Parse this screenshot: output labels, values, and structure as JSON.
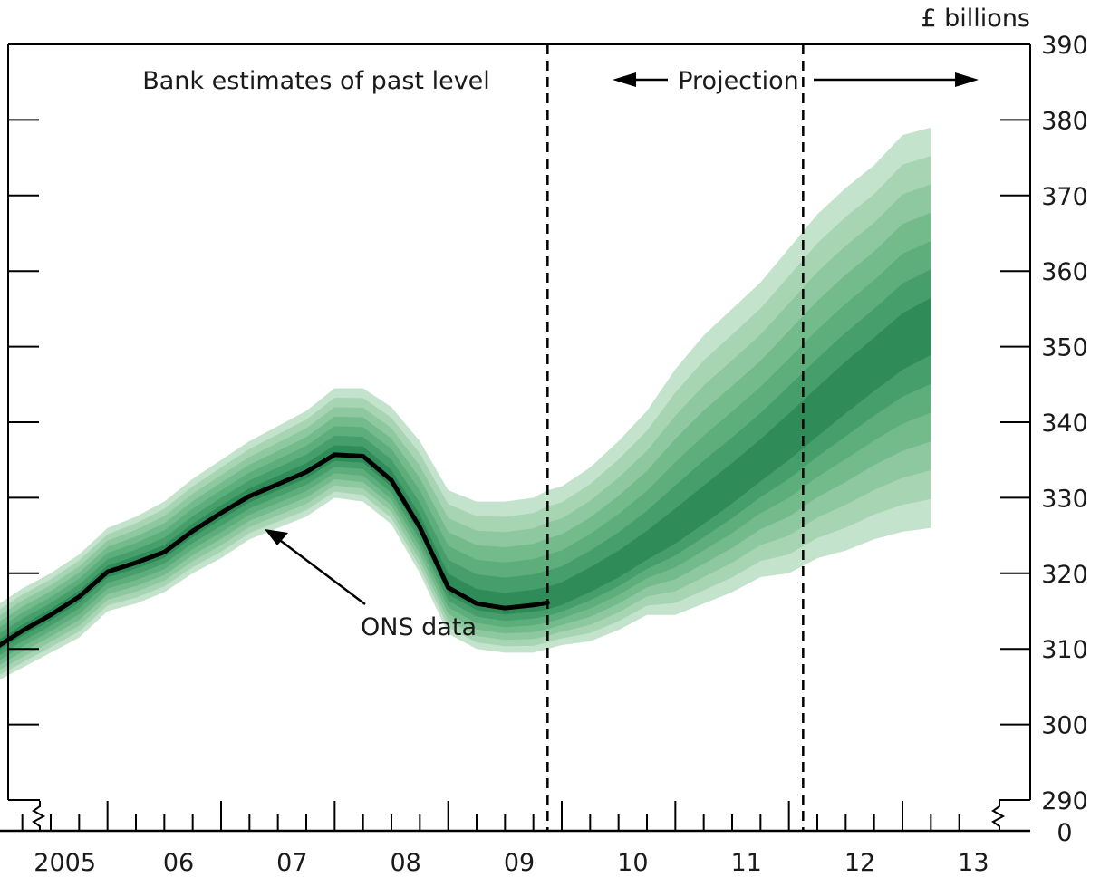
{
  "chart_data": {
    "type": "area",
    "unit_label": "£ billions",
    "x_tick_labels": [
      {
        "x": 2005.0,
        "label": "2005"
      },
      {
        "x": 2006.0,
        "label": "06"
      },
      {
        "x": 2007.0,
        "label": "07"
      },
      {
        "x": 2008.0,
        "label": "08"
      },
      {
        "x": 2009.0,
        "label": "09"
      },
      {
        "x": 2010.0,
        "label": "10"
      },
      {
        "x": 2011.0,
        "label": "11"
      },
      {
        "x": 2012.0,
        "label": "12"
      },
      {
        "x": 2013.0,
        "label": "13"
      }
    ],
    "y_tick_labels": [
      "290",
      "300",
      "310",
      "320",
      "330",
      "340",
      "350",
      "360",
      "370",
      "380",
      "390"
    ],
    "y_break_label": "0",
    "ylim": [
      290,
      390
    ],
    "xlim": [
      2004.5,
      2013.5
    ],
    "annotations": {
      "past": "Bank estimates of past level",
      "projection": "Projection",
      "ons": "ONS data"
    },
    "vlines": [
      2009.25,
      2011.5
    ],
    "band_colors": [
      "#c4e3cc",
      "#a7d5b3",
      "#8ec8a0",
      "#74bb8c",
      "#5dae7b",
      "#469f6a",
      "#2f8c58"
    ],
    "center": [
      [
        2004.375,
        310.0
      ],
      [
        2004.625,
        312.4
      ],
      [
        2004.875,
        314.5
      ],
      [
        2005.125,
        316.9
      ],
      [
        2005.375,
        320.2
      ],
      [
        2005.625,
        321.4
      ],
      [
        2005.875,
        322.8
      ],
      [
        2006.125,
        325.6
      ],
      [
        2006.375,
        328.0
      ],
      [
        2006.625,
        330.2
      ],
      [
        2006.875,
        331.8
      ],
      [
        2007.125,
        333.4
      ],
      [
        2007.375,
        335.7
      ],
      [
        2007.625,
        335.5
      ],
      [
        2007.875,
        332.3
      ],
      [
        2008.125,
        326.1
      ],
      [
        2008.375,
        318.1
      ],
      [
        2008.625,
        316.0
      ],
      [
        2008.875,
        315.4
      ],
      [
        2009.125,
        315.8
      ],
      [
        2009.25,
        316.1
      ],
      [
        2009.375,
        316.7
      ],
      [
        2009.625,
        318.6
      ],
      [
        2009.875,
        320.6
      ],
      [
        2010.125,
        323.0
      ],
      [
        2010.375,
        325.5
      ],
      [
        2010.625,
        328.3
      ],
      [
        2010.875,
        331.2
      ],
      [
        2011.125,
        334.3
      ],
      [
        2011.375,
        337.5
      ],
      [
        2011.625,
        340.8
      ],
      [
        2011.875,
        344.2
      ],
      [
        2012.125,
        347.4
      ],
      [
        2012.375,
        350.5
      ],
      [
        2012.625,
        352.7
      ]
    ],
    "outer_upper": [
      [
        2004.375,
        315.5
      ],
      [
        2004.625,
        318.0
      ],
      [
        2004.875,
        320.0
      ],
      [
        2005.125,
        322.5
      ],
      [
        2005.375,
        326.0
      ],
      [
        2005.625,
        327.5
      ],
      [
        2005.875,
        329.5
      ],
      [
        2006.125,
        332.5
      ],
      [
        2006.375,
        335.0
      ],
      [
        2006.625,
        337.5
      ],
      [
        2006.875,
        339.5
      ],
      [
        2007.125,
        341.5
      ],
      [
        2007.375,
        344.5
      ],
      [
        2007.625,
        344.5
      ],
      [
        2007.875,
        342.0
      ],
      [
        2008.125,
        337.5
      ],
      [
        2008.375,
        331.0
      ],
      [
        2008.625,
        329.5
      ],
      [
        2008.875,
        329.5
      ],
      [
        2009.125,
        330.0
      ],
      [
        2009.25,
        331.0
      ],
      [
        2009.375,
        331.5
      ],
      [
        2009.625,
        334.0
      ],
      [
        2009.875,
        337.5
      ],
      [
        2010.125,
        341.5
      ],
      [
        2010.375,
        347.0
      ],
      [
        2010.625,
        351.5
      ],
      [
        2010.875,
        355.0
      ],
      [
        2011.125,
        358.5
      ],
      [
        2011.375,
        363.0
      ],
      [
        2011.625,
        367.5
      ],
      [
        2011.875,
        371.0
      ],
      [
        2012.125,
        374.0
      ],
      [
        2012.375,
        378.0
      ],
      [
        2012.625,
        379.0
      ]
    ],
    "outer_lower": [
      [
        2004.375,
        305.5
      ],
      [
        2004.625,
        307.5
      ],
      [
        2004.875,
        309.5
      ],
      [
        2005.125,
        311.5
      ],
      [
        2005.375,
        315.0
      ],
      [
        2005.625,
        316.0
      ],
      [
        2005.875,
        317.5
      ],
      [
        2006.125,
        320.0
      ],
      [
        2006.375,
        322.0
      ],
      [
        2006.625,
        324.5
      ],
      [
        2006.875,
        326.0
      ],
      [
        2007.125,
        327.5
      ],
      [
        2007.375,
        330.0
      ],
      [
        2007.625,
        329.5
      ],
      [
        2007.875,
        326.5
      ],
      [
        2008.125,
        320.0
      ],
      [
        2008.375,
        312.0
      ],
      [
        2008.625,
        310.0
      ],
      [
        2008.875,
        309.5
      ],
      [
        2009.125,
        309.5
      ],
      [
        2009.25,
        310.0
      ],
      [
        2009.375,
        310.5
      ],
      [
        2009.625,
        311.0
      ],
      [
        2009.875,
        312.5
      ],
      [
        2010.125,
        314.5
      ],
      [
        2010.375,
        314.5
      ],
      [
        2010.625,
        316.0
      ],
      [
        2010.875,
        317.5
      ],
      [
        2011.125,
        319.5
      ],
      [
        2011.375,
        320.0
      ],
      [
        2011.625,
        322.0
      ],
      [
        2011.875,
        323.0
      ],
      [
        2012.125,
        324.5
      ],
      [
        2012.375,
        325.5
      ],
      [
        2012.625,
        326.0
      ]
    ],
    "ons_data": [
      [
        2004.375,
        310.0
      ],
      [
        2004.625,
        312.4
      ],
      [
        2004.875,
        314.5
      ],
      [
        2005.125,
        316.9
      ],
      [
        2005.375,
        320.2
      ],
      [
        2005.625,
        321.4
      ],
      [
        2005.875,
        322.8
      ],
      [
        2006.125,
        325.6
      ],
      [
        2006.375,
        328.0
      ],
      [
        2006.625,
        330.2
      ],
      [
        2006.875,
        331.8
      ],
      [
        2007.125,
        333.4
      ],
      [
        2007.375,
        335.7
      ],
      [
        2007.625,
        335.5
      ],
      [
        2007.875,
        332.3
      ],
      [
        2008.125,
        326.1
      ],
      [
        2008.375,
        318.1
      ],
      [
        2008.625,
        316.0
      ],
      [
        2008.875,
        315.4
      ],
      [
        2009.125,
        315.8
      ],
      [
        2009.25,
        316.1
      ]
    ]
  }
}
